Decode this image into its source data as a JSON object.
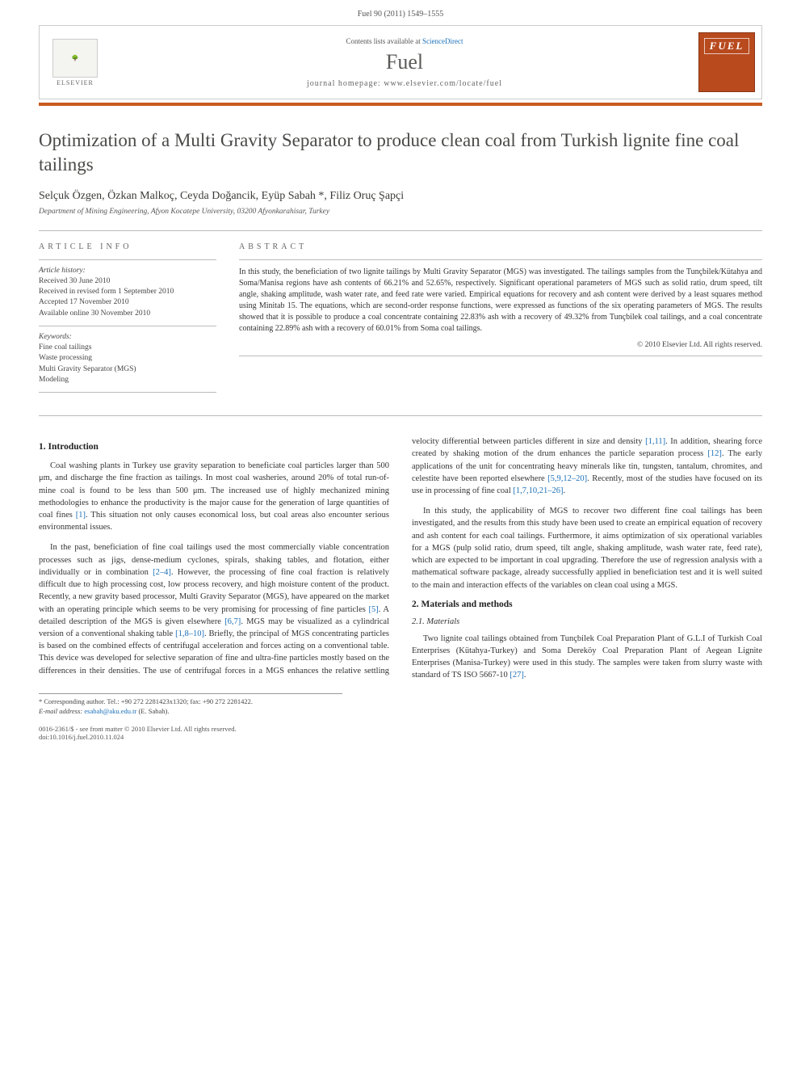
{
  "header": {
    "citation": "Fuel 90 (2011) 1549–1555"
  },
  "banner": {
    "contents_prefix": "Contents lists available at ",
    "contents_link": "ScienceDirect",
    "journal_name": "Fuel",
    "homepage_prefix": "journal homepage: ",
    "homepage_url": "www.elsevier.com/locate/fuel",
    "publisher_name": "ELSEVIER",
    "cover_label": "FUEL"
  },
  "title": "Optimization of a Multi Gravity Separator to produce clean coal from Turkish lignite fine coal tailings",
  "authors": "Selçuk Özgen, Özkan Malkoç, Ceyda Doğancik, Eyüp Sabah *, Filiz Oruç Şapçi",
  "affiliation": "Department of Mining Engineering, Afyon Kocatepe University, 03200 Afyonkarahisar, Turkey",
  "info": {
    "label": "ARTICLE INFO",
    "history_label": "Article history:",
    "history": [
      "Received 30 June 2010",
      "Received in revised form 1 September 2010",
      "Accepted 17 November 2010",
      "Available online 30 November 2010"
    ],
    "keywords_label": "Keywords:",
    "keywords": [
      "Fine coal tailings",
      "Waste processing",
      "Multi Gravity Separator (MGS)",
      "Modeling"
    ]
  },
  "abstract": {
    "label": "ABSTRACT",
    "text": "In this study, the beneficiation of two lignite tailings by Multi Gravity Separator (MGS) was investigated. The tailings samples from the Tunçbilek/Kütahya and Soma/Manisa regions have ash contents of 66.21% and 52.65%, respectively. Significant operational parameters of MGS such as solid ratio, drum speed, tilt angle, shaking amplitude, wash water rate, and feed rate were varied. Empirical equations for recovery and ash content were derived by a least squares method using Minitab 15. The equations, which are second-order response functions, were expressed as functions of the six operating parameters of MGS. The results showed that it is possible to produce a coal concentrate containing 22.83% ash with a recovery of 49.32% from Tunçbilek coal tailings, and a coal concentrate containing 22.89% ash with a recovery of 60.01% from Soma coal tailings.",
    "copyright": "© 2010 Elsevier Ltd. All rights reserved."
  },
  "body": {
    "s1_title": "1. Introduction",
    "s1_p1": "Coal washing plants in Turkey use gravity separation to beneficiate coal particles larger than 500 μm, and discharge the fine fraction as tailings. In most coal washeries, around 20% of total run-of-mine coal is found to be less than 500 μm. The increased use of highly mechanized mining methodologies to enhance the productivity is the major cause for the generation of large quantities of coal fines ",
    "s1_p1_ref1": "[1]",
    "s1_p1_tail": ". This situation not only causes economical loss, but coal areas also encounter serious environmental issues.",
    "s1_p2a": "In the past, beneficiation of fine coal tailings used the most commercially viable concentration processes such as jigs, dense-medium cyclones, spirals, shaking tables, and flotation, either individually or in combination ",
    "s1_p2_ref1": "[2–4]",
    "s1_p2b": ". However, the processing of fine coal fraction is relatively difficult due to high processing cost, low process recovery, and high moisture content of the product. Recently, a new gravity based processor, Multi Gravity Separator (MGS), have appeared on the market with an operating principle which seems to be very promising for processing of fine particles ",
    "s1_p2_ref2": "[5]",
    "s1_p2c": ". A detailed description of the MGS is given elsewhere ",
    "s1_p2_ref3": "[6,7]",
    "s1_p2d": ". MGS may be visualized as a cylindrical version of a conventional shaking table ",
    "s1_p2_ref4": "[1,8–10]",
    "s1_p2e": ". Briefly, the principal of MGS concentrating particles is based on the combined effects of centrifugal acceleration and forces acting on a conventional table. This device was developed for selective separation of fine and ultra-fine particles mostly based on the differences in their densities. The use of centrifugal forces in a MGS enhances the relative settling velocity differential between particles different in size and density ",
    "s1_p2_ref5": "[1,11]",
    "s1_p2f": ". In addition, shearing force created by shaking motion of the drum enhances the particle separation process ",
    "s1_p2_ref6": "[12]",
    "s1_p2g": ". The early applications of the unit for concentrating heavy minerals like tin, tungsten, tantalum, chromites, and celestite have been reported elsewhere ",
    "s1_p2_ref7": "[5,9,12–20]",
    "s1_p2h": ". Recently, most of the studies have focused on its use in processing of fine coal ",
    "s1_p2_ref8": "[1,7,10,21–26]",
    "s1_p2i": ".",
    "s1_p3": "In this study, the applicability of MGS to recover two different fine coal tailings has been investigated, and the results from this study have been used to create an empirical equation of recovery and ash content for each coal tailings. Furthermore, it aims optimization of six operational variables for a MGS (pulp solid ratio, drum speed, tilt angle, shaking amplitude, wash water rate, feed rate), which are expected to be important in coal upgrading. Therefore the use of regression analysis with a mathematical software package, already successfully applied in beneficiation test and it is well suited to the main and interaction effects of the variables on clean coal using a MGS.",
    "s2_title": "2. Materials and methods",
    "s21_title": "2.1. Materials",
    "s21_p1a": "Two lignite coal tailings obtained from Tunçbilek Coal Preparation Plant of G.L.I of Turkish Coal Enterprises (Kütahya-Turkey) and Soma Dereköy Coal Preparation Plant of Aegean Lignite Enterprises (Manisa-Turkey) were used in this study. The samples were taken from slurry waste with standard of TS ISO 5667-10 ",
    "s21_p1_ref": "[27]",
    "s21_p1b": "."
  },
  "corr": {
    "line1": "* Corresponding author. Tel.: +90 272 2281423x1320; fax: +90 272 2281422.",
    "email_label": "E-mail address: ",
    "email": "esabah@aku.edu.tr",
    "email_tail": " (E. Sabah)."
  },
  "footer": {
    "left": "0016-2361/$ - see front matter © 2010 Elsevier Ltd. All rights reserved.",
    "doi": "doi:10.1016/j.fuel.2010.11.024"
  },
  "colors": {
    "accent_orange": "#c95a1e",
    "link_blue": "#1a6fb8",
    "cover_bg": "#b84a1e"
  }
}
